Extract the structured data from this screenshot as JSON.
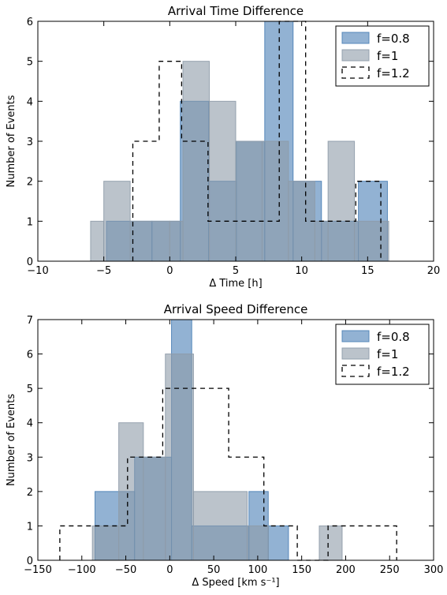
{
  "chart_data": [
    {
      "type": "histogram",
      "title": "Arrival Time Difference",
      "xlabel": "Δ Time [h]",
      "ylabel": "Number of Events",
      "xlim": [
        -10,
        20
      ],
      "ylim": [
        0,
        6
      ],
      "xticks": [
        -10,
        -5,
        0,
        5,
        10,
        15,
        20
      ],
      "yticks": [
        0,
        1,
        2,
        3,
        4,
        5,
        6
      ],
      "legend_position": "top-right",
      "series": [
        {
          "name": "f=0.8",
          "style": "filled",
          "color": "#4a7fb5",
          "edges": [
            -4.8,
            -1.35,
            0.8,
            2.95,
            5.05,
            7.2,
            9.35,
            11.5,
            14.3,
            16.5
          ],
          "counts": [
            1,
            1,
            4,
            2,
            3,
            6,
            2,
            1,
            2
          ]
        },
        {
          "name": "f=1",
          "style": "filled",
          "color": "#8e9ba8",
          "edges": [
            -6.0,
            -5.0,
            -3.0,
            0.0,
            1.0,
            3.0,
            5.0,
            7.0,
            9.0,
            11.0,
            12.0,
            14.0,
            16.6
          ],
          "counts": [
            1,
            2,
            1,
            1,
            5,
            4,
            3,
            3,
            2,
            1,
            3,
            1
          ]
        },
        {
          "name": "f=1.2",
          "style": "dashed",
          "color": "#000000",
          "edges": [
            -2.8,
            -0.8,
            0.9,
            2.9,
            4.7,
            8.3,
            10.3,
            14.1,
            16.0
          ],
          "counts": [
            3,
            5,
            3,
            1,
            1,
            6,
            1,
            2
          ]
        }
      ]
    },
    {
      "type": "histogram",
      "title": "Arrival Speed Difference",
      "xlabel": "Δ Speed [km s⁻¹]",
      "ylabel": "Number of Events",
      "xlim": [
        -150,
        300
      ],
      "ylim": [
        0,
        7
      ],
      "xticks": [
        -150,
        -100,
        -50,
        0,
        50,
        100,
        150,
        200,
        250,
        300
      ],
      "yticks": [
        0,
        1,
        2,
        3,
        4,
        5,
        6,
        7
      ],
      "legend_position": "top-right",
      "series": [
        {
          "name": "f=0.8",
          "style": "filled",
          "color": "#4a7fb5",
          "edges": [
            -85,
            -40,
            2,
            25,
            90,
            112,
            135
          ],
          "counts": [
            2,
            3,
            7,
            1,
            2,
            1
          ]
        },
        {
          "name": "f=1",
          "style": "filled",
          "color": "#8e9ba8",
          "edges": [
            -88,
            -58,
            -30,
            -5,
            27,
            88,
            112,
            170,
            196
          ],
          "counts": [
            1,
            4,
            3,
            6,
            2,
            1,
            0,
            1
          ]
        },
        {
          "name": "f=1.2",
          "style": "dashed",
          "color": "#000000",
          "edges": [
            -125,
            -48,
            -8,
            28,
            67,
            107,
            145,
            180,
            258
          ],
          "counts": [
            1,
            3,
            5,
            5,
            3,
            1,
            0,
            1
          ]
        }
      ]
    }
  ]
}
